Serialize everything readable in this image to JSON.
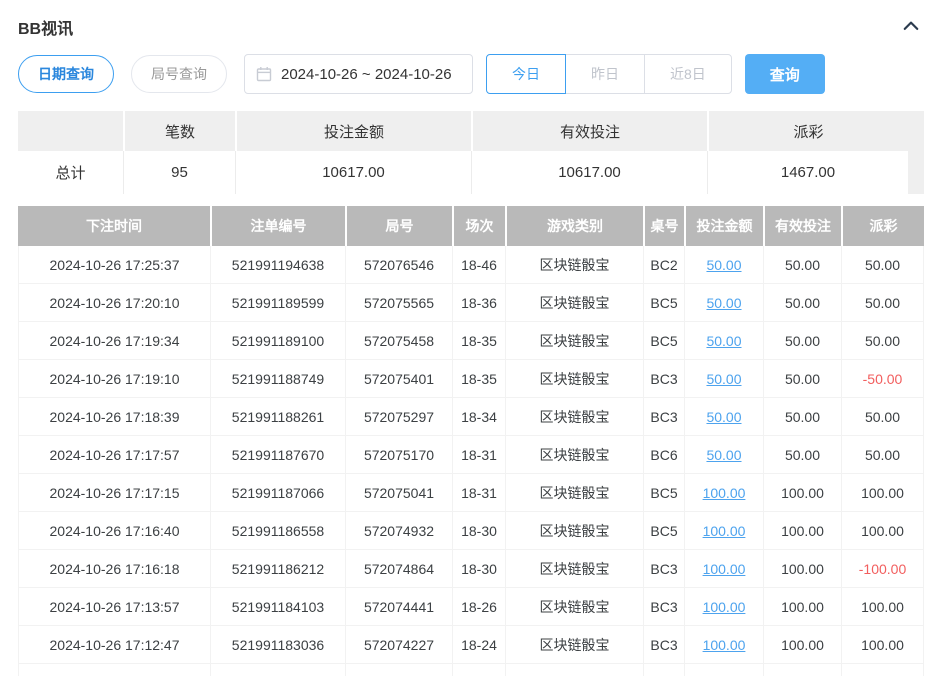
{
  "panel": {
    "title": "BB视讯"
  },
  "filters": {
    "date_query_tab": "日期查询",
    "round_query_tab": "局号查询",
    "date_range": "2024-10-26 ~ 2024-10-26",
    "quick_buttons": [
      "今日",
      "昨日",
      "近8日"
    ],
    "active_quick_button": "今日",
    "search_button": "查询"
  },
  "summary": {
    "headers": [
      "",
      "笔数",
      "投注金额",
      "有效投注",
      "派彩"
    ],
    "total_row": [
      "总计",
      "95",
      "10617.00",
      "10617.00",
      "1467.00"
    ]
  },
  "table": {
    "headers": [
      "下注时间",
      "注单编号",
      "局号",
      "场次",
      "游戏类别",
      "桌号",
      "投注金额",
      "有效投注",
      "派彩"
    ],
    "rows": [
      {
        "cells": [
          "2024-10-26 17:25:37",
          "521991194638",
          "572076546",
          "18-46",
          "区块链骰宝",
          "BC2",
          "50.00",
          "50.00",
          "50.00"
        ],
        "negative": false
      },
      {
        "cells": [
          "2024-10-26 17:20:10",
          "521991189599",
          "572075565",
          "18-36",
          "区块链骰宝",
          "BC5",
          "50.00",
          "50.00",
          "50.00"
        ],
        "negative": false
      },
      {
        "cells": [
          "2024-10-26 17:19:34",
          "521991189100",
          "572075458",
          "18-35",
          "区块链骰宝",
          "BC5",
          "50.00",
          "50.00",
          "50.00"
        ],
        "negative": false
      },
      {
        "cells": [
          "2024-10-26 17:19:10",
          "521991188749",
          "572075401",
          "18-35",
          "区块链骰宝",
          "BC3",
          "50.00",
          "50.00",
          "-50.00"
        ],
        "negative": true
      },
      {
        "cells": [
          "2024-10-26 17:18:39",
          "521991188261",
          "572075297",
          "18-34",
          "区块链骰宝",
          "BC3",
          "50.00",
          "50.00",
          "50.00"
        ],
        "negative": false
      },
      {
        "cells": [
          "2024-10-26 17:17:57",
          "521991187670",
          "572075170",
          "18-31",
          "区块链骰宝",
          "BC6",
          "50.00",
          "50.00",
          "50.00"
        ],
        "negative": false
      },
      {
        "cells": [
          "2024-10-26 17:17:15",
          "521991187066",
          "572075041",
          "18-31",
          "区块链骰宝",
          "BC5",
          "100.00",
          "100.00",
          "100.00"
        ],
        "negative": false
      },
      {
        "cells": [
          "2024-10-26 17:16:40",
          "521991186558",
          "572074932",
          "18-30",
          "区块链骰宝",
          "BC5",
          "100.00",
          "100.00",
          "100.00"
        ],
        "negative": false
      },
      {
        "cells": [
          "2024-10-26 17:16:18",
          "521991186212",
          "572074864",
          "18-30",
          "区块链骰宝",
          "BC3",
          "100.00",
          "100.00",
          "-100.00"
        ],
        "negative": true
      },
      {
        "cells": [
          "2024-10-26 17:13:57",
          "521991184103",
          "572074441",
          "18-26",
          "区块链骰宝",
          "BC3",
          "100.00",
          "100.00",
          "100.00"
        ],
        "negative": false
      },
      {
        "cells": [
          "2024-10-26 17:12:47",
          "521991183036",
          "572074227",
          "18-24",
          "区块链骰宝",
          "BC3",
          "100.00",
          "100.00",
          "100.00"
        ],
        "negative": false
      }
    ]
  },
  "icons": {
    "collapse": "chevron-up-icon",
    "calendar": "calendar-icon"
  },
  "colors": {
    "accent": "#3d9ff0",
    "search_button_bg": "#54aef5",
    "link": "#4da3ee",
    "negative": "#f25e5e",
    "table_header_bg": "#b9b9b9",
    "summary_header_bg": "#efefef"
  }
}
